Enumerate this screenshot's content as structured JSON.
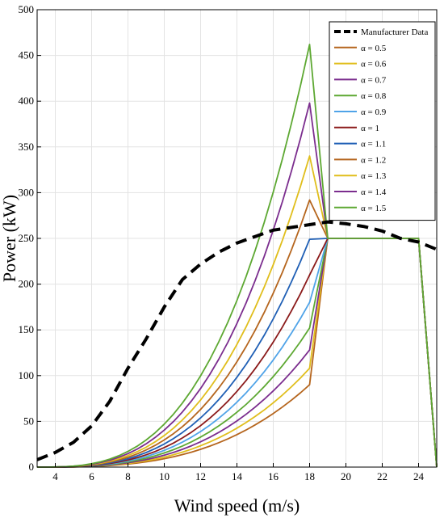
{
  "chart_data": {
    "type": "line",
    "title": "",
    "xlabel": "Wind speed (m/s)",
    "ylabel": "Power (kW)",
    "xlim": [
      3,
      25
    ],
    "ylim": [
      0,
      500
    ],
    "xticks": [
      4,
      6,
      8,
      10,
      12,
      14,
      16,
      18,
      20,
      22,
      24
    ],
    "yticks": [
      0,
      50,
      100,
      150,
      200,
      250,
      300,
      350,
      400,
      450,
      500
    ],
    "grid": true,
    "legend_position": "top-right",
    "manufacturer": {
      "name": "Manufacturer Data",
      "color": "#000000",
      "style": "dashed",
      "x": [
        3,
        4,
        5,
        6,
        7,
        8,
        9,
        10,
        11,
        12,
        13,
        14,
        15,
        16,
        17,
        18,
        19,
        20,
        21,
        22,
        23,
        24,
        25
      ],
      "y": [
        8,
        16,
        27,
        45,
        72,
        108,
        140,
        175,
        205,
        222,
        235,
        245,
        252,
        259,
        262,
        265,
        268,
        266,
        263,
        258,
        250,
        246,
        238
      ]
    },
    "series": [
      {
        "name": "α = 0.5",
        "color": "#B5651D",
        "peak": 90
      },
      {
        "name": "α = 0.6",
        "color": "#E0BE1C",
        "peak": 108
      },
      {
        "name": "α = 0.7",
        "color": "#7B2D8E",
        "peak": 128
      },
      {
        "name": "α = 0.8",
        "color": "#5DA832",
        "peak": 152
      },
      {
        "name": "α = 0.9",
        "color": "#4FA3E8",
        "peak": 180
      },
      {
        "name": "α = 1",
        "color": "#8B1A1A",
        "peak": 210
      },
      {
        "name": "α = 1.1",
        "color": "#1F5FB5",
        "peak": 249
      },
      {
        "name": "α = 1.2",
        "color": "#B5651D",
        "peak": 292
      },
      {
        "name": "α = 1.3",
        "color": "#E0BE1C",
        "peak": 340
      },
      {
        "name": "α = 1.4",
        "color": "#7B2D8E",
        "peak": 398
      },
      {
        "name": "α = 1.5",
        "color": "#5DA832",
        "peak": 462
      }
    ],
    "rated_power": 250,
    "cut_in": 3,
    "peak_speed": 18,
    "rated_speed": 19,
    "cut_out": 24,
    "max_speed": 25
  }
}
